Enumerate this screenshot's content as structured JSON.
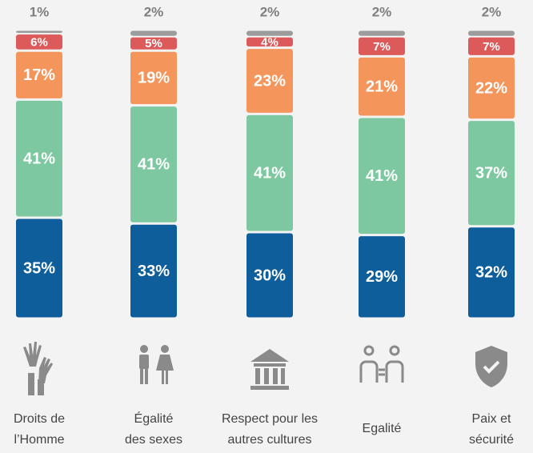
{
  "chart_data": {
    "type": "stacked-bar",
    "categories": [
      [
        "Droits de",
        "l’Homme"
      ],
      [
        "Égalité",
        "des sexes"
      ],
      [
        "Respect pour les",
        "autres cultures"
      ],
      [
        "Egalité"
      ],
      [
        "Paix et",
        "sécurité"
      ]
    ],
    "ylim": [
      0,
      100
    ],
    "series": [
      {
        "color": "#0f5e9c",
        "values": [
          35,
          33,
          30,
          29,
          32
        ],
        "value_labels": [
          "35%",
          "33%",
          "30%",
          "29%",
          "32%"
        ]
      },
      {
        "color": "#7dc8a1",
        "values": [
          41,
          41,
          41,
          41,
          37
        ],
        "value_labels": [
          "41%",
          "41%",
          "41%",
          "41%",
          "37%"
        ]
      },
      {
        "color": "#f4955b",
        "values": [
          17,
          19,
          23,
          21,
          22
        ],
        "value_labels": [
          "17%",
          "19%",
          "23%",
          "21%",
          "22%"
        ]
      },
      {
        "color": "#dc5a5a",
        "values": [
          6,
          5,
          4,
          7,
          7
        ],
        "value_labels": [
          "6%",
          "5%",
          "4%",
          "7%",
          "7%"
        ]
      },
      {
        "color": "#9c9c9c",
        "values": [
          1,
          2,
          2,
          2,
          2
        ],
        "value_labels": [
          "1%",
          "2%",
          "2%",
          "2%",
          "2%"
        ]
      }
    ]
  }
}
